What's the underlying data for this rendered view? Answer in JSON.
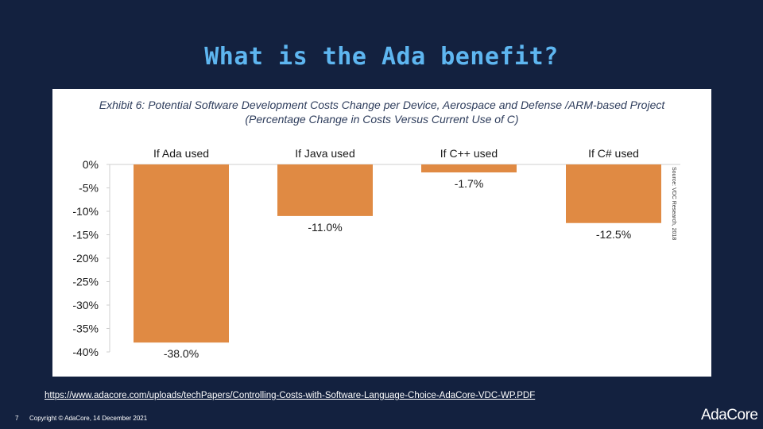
{
  "slide": {
    "title": "What is the Ada benefit?",
    "source_url": "https://www.adacore.com/uploads/techPapers/Controlling-Costs-with-Software-Language-Choice-AdaCore-VDC-WP.PDF",
    "page_number": "7",
    "copyright": "Copyright © AdaCore, 14 December 2021",
    "logo_text": "AdaCore"
  },
  "colors": {
    "background": "#13213f",
    "title": "#5eb6f0",
    "bar": "#e08a43",
    "axis_text": "#1a1a1a"
  },
  "chart_data": {
    "type": "bar",
    "title_line1": "Exhibit 6: Potential Software Development Costs Change per Device, Aerospace and Defense /ARM-based Project",
    "title_line2": "(Percentage Change in Costs Versus Current Use of C)",
    "categories": [
      "If Ada used",
      "If Java used",
      "If C++ used",
      "If C# used"
    ],
    "values": [
      -38.0,
      -11.0,
      -1.7,
      -12.5
    ],
    "data_labels": [
      "-38.0%",
      "-11.0%",
      "-1.7%",
      "-12.5%"
    ],
    "y_ticks": [
      0,
      -5,
      -10,
      -15,
      -20,
      -25,
      -30,
      -35,
      -40
    ],
    "y_tick_labels": [
      "0%",
      "-5%",
      "-10%",
      "-15%",
      "-20%",
      "-25%",
      "-30%",
      "-35%",
      "-40%"
    ],
    "ylim": [
      -40,
      0
    ],
    "source_note": "Source: VDC Research, 2018",
    "grid": false,
    "legend": "none"
  }
}
